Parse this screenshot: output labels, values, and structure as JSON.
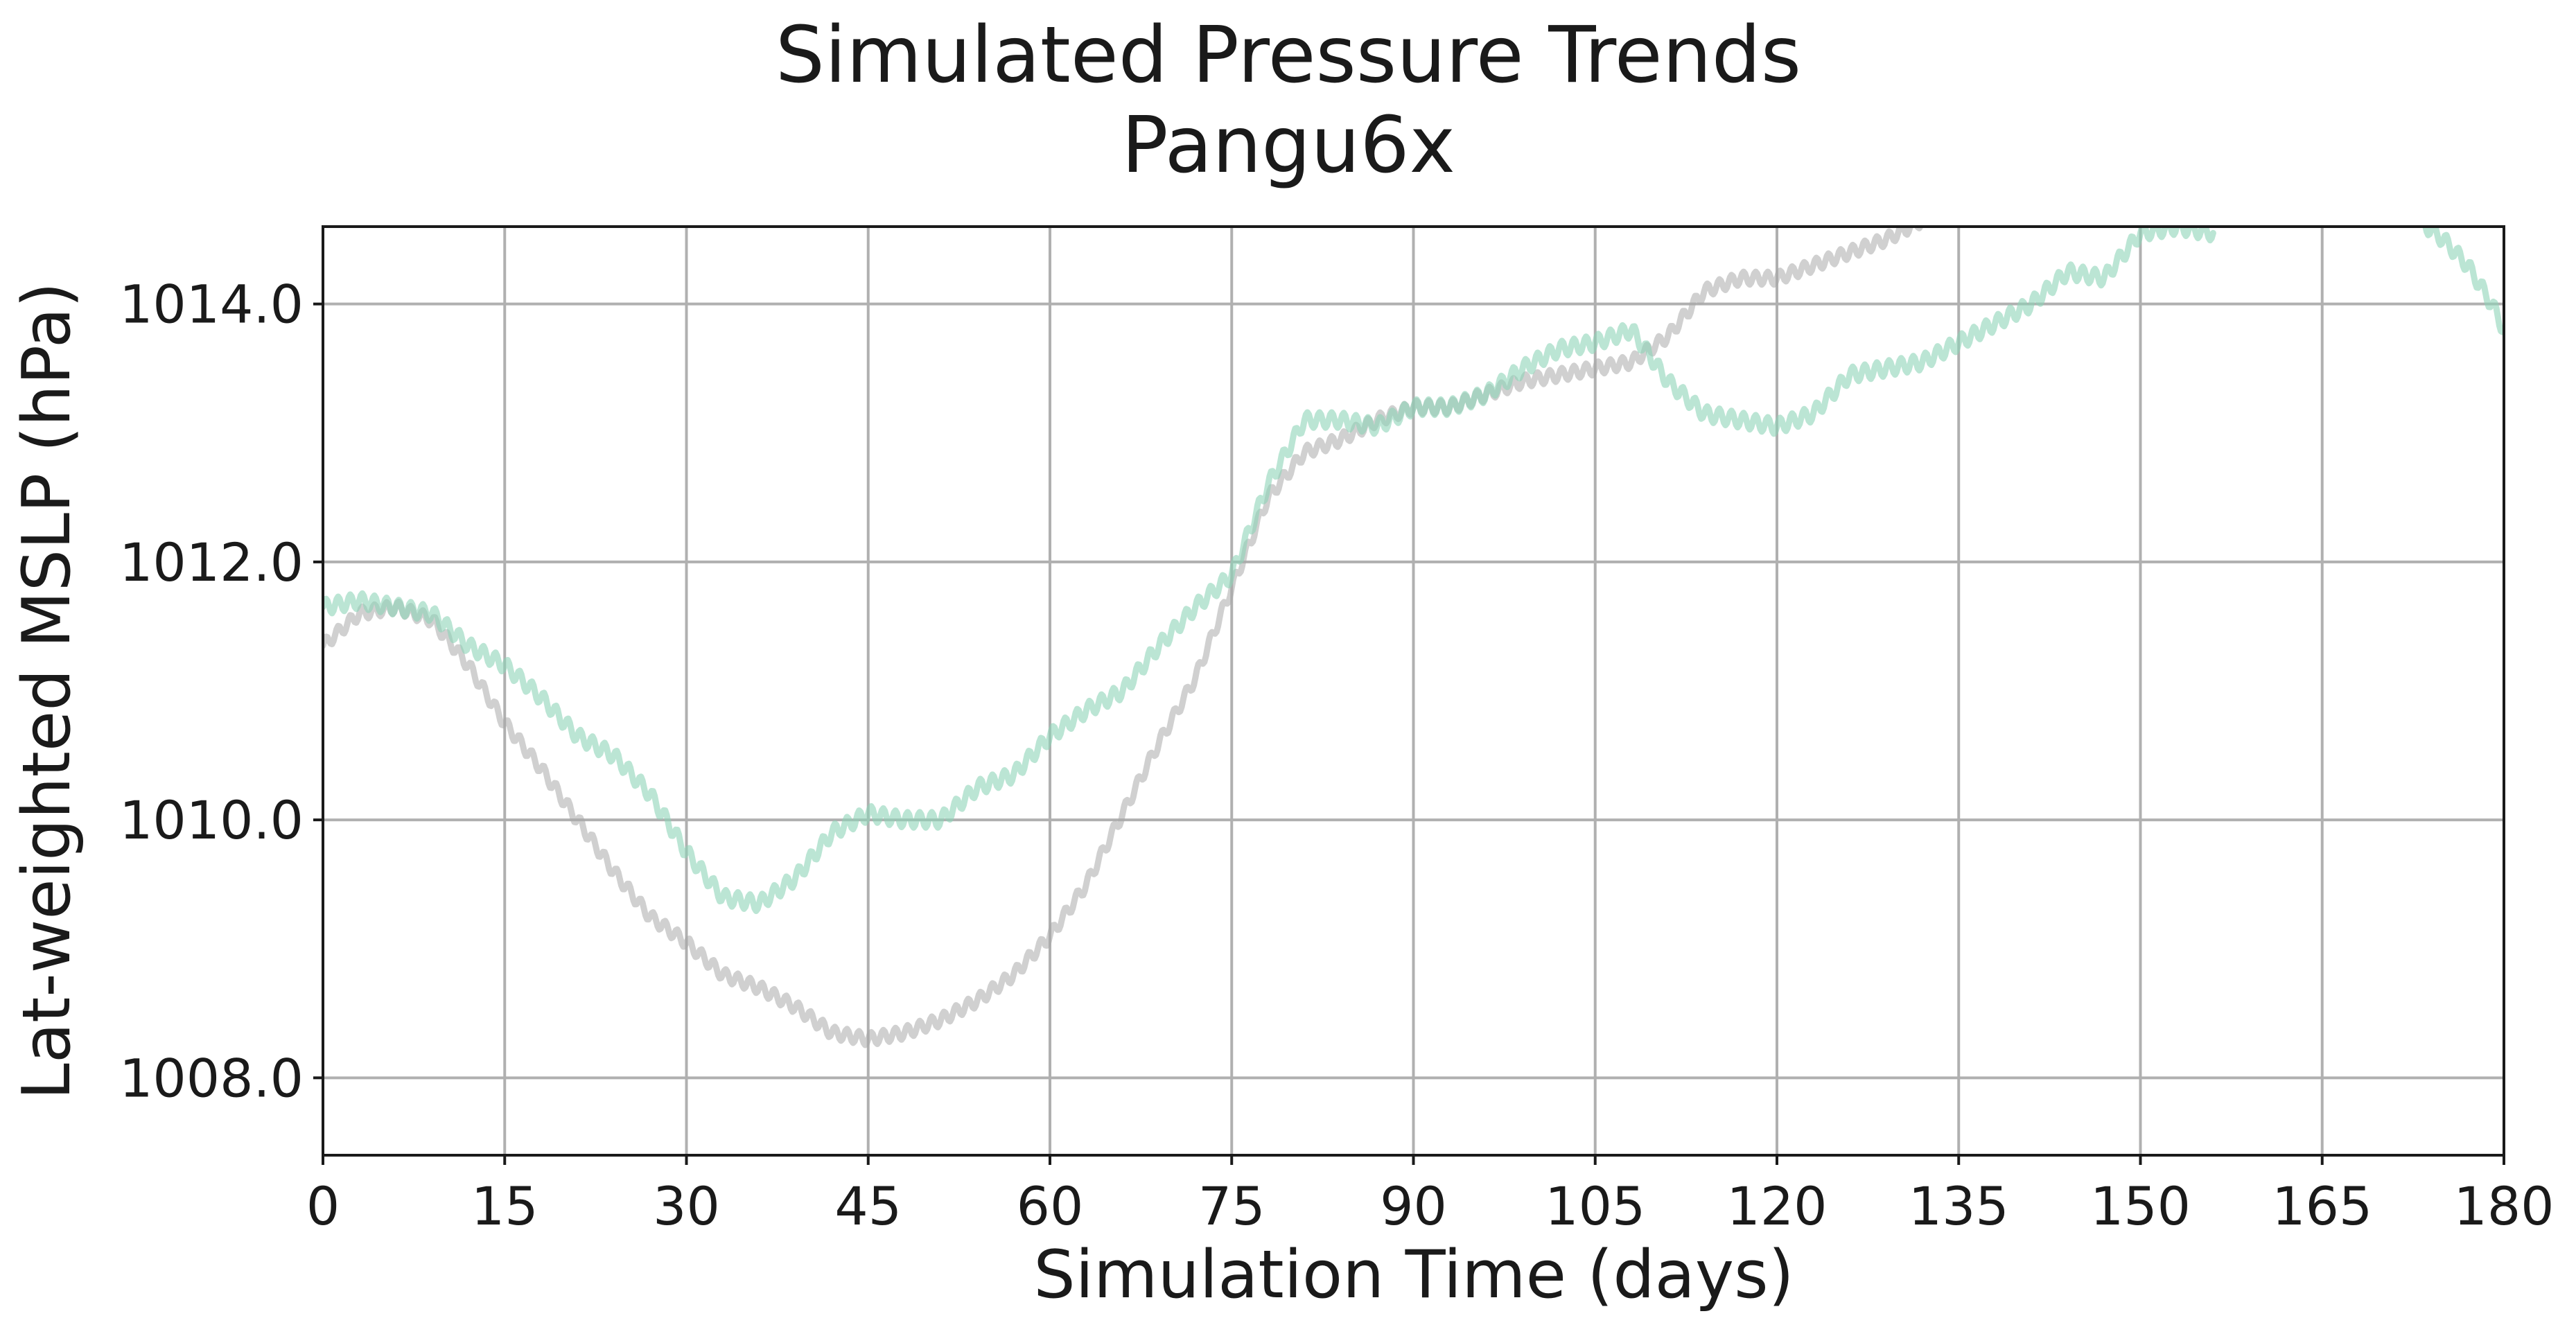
{
  "chart_data": {
    "type": "line",
    "title": "Simulated Pressure Trends",
    "subtitle": "Pangu6x",
    "xlabel": "Simulation Time (days)",
    "ylabel": "Lat-weighted MSLP (hPa)",
    "xlim": [
      0,
      180
    ],
    "ylim": [
      1007.4,
      1014.6
    ],
    "xticks": [
      0,
      15,
      30,
      45,
      60,
      75,
      90,
      105,
      120,
      135,
      150,
      165,
      180
    ],
    "xtick_labels": [
      "0",
      "15",
      "30",
      "45",
      "60",
      "75",
      "90",
      "105",
      "120",
      "135",
      "150",
      "165",
      "180"
    ],
    "yticks": [
      1008.0,
      1010.0,
      1012.0,
      1014.0
    ],
    "ytick_labels": [
      "1008.0",
      "1010.0",
      "1012.0",
      "1014.0"
    ],
    "grid": true,
    "legend": false,
    "series": [
      {
        "color": "#a9a9a9",
        "opacity": 0.55,
        "oscillation_amplitude": 0.05,
        "x": [
          0,
          3,
          6,
          9,
          12,
          15,
          18,
          21,
          24,
          27,
          30,
          33,
          36,
          39,
          42,
          45,
          48,
          51,
          54,
          57,
          60,
          63,
          66,
          69,
          72,
          75,
          78,
          81,
          84,
          87,
          90,
          93,
          96,
          99,
          102,
          105,
          108,
          111,
          114,
          117,
          120,
          123,
          126,
          129,
          132
        ],
        "y": [
          1011.35,
          1011.6,
          1011.65,
          1011.55,
          1011.2,
          1010.75,
          1010.4,
          1010.0,
          1009.6,
          1009.25,
          1009.05,
          1008.8,
          1008.7,
          1008.55,
          1008.35,
          1008.3,
          1008.35,
          1008.45,
          1008.6,
          1008.8,
          1009.1,
          1009.5,
          1010.05,
          1010.6,
          1011.1,
          1011.8,
          1012.5,
          1012.85,
          1012.95,
          1013.1,
          1013.2,
          1013.2,
          1013.3,
          1013.4,
          1013.45,
          1013.5,
          1013.55,
          1013.75,
          1014.1,
          1014.2,
          1014.2,
          1014.3,
          1014.4,
          1014.5,
          1014.65
        ]
      },
      {
        "color": "#8dd4b8",
        "opacity": 0.6,
        "oscillation_amplitude": 0.06,
        "x": [
          0,
          3,
          6,
          9,
          12,
          15,
          18,
          21,
          24,
          27,
          30,
          33,
          36,
          39,
          42,
          45,
          48,
          51,
          54,
          57,
          60,
          63,
          66,
          69,
          72,
          75,
          78,
          81,
          84,
          87,
          90,
          93,
          96,
          99,
          102,
          105,
          108,
          111,
          114,
          117,
          120,
          123,
          126,
          129,
          132,
          135,
          138,
          141,
          144,
          147,
          150,
          153,
          156
        ],
        "y": [
          1011.65,
          1011.7,
          1011.65,
          1011.6,
          1011.35,
          1011.2,
          1010.95,
          1010.65,
          1010.5,
          1010.2,
          1009.75,
          1009.4,
          1009.35,
          1009.55,
          1009.9,
          1010.05,
          1010.0,
          1010.0,
          1010.25,
          1010.35,
          1010.65,
          1010.85,
          1011.0,
          1011.35,
          1011.65,
          1011.9,
          1012.6,
          1013.1,
          1013.1,
          1013.05,
          1013.2,
          1013.2,
          1013.3,
          1013.5,
          1013.65,
          1013.7,
          1013.8,
          1013.4,
          1013.15,
          1013.1,
          1013.05,
          1013.15,
          1013.45,
          1013.5,
          1013.55,
          1013.7,
          1013.85,
          1014.0,
          1014.25,
          1014.2,
          1014.55,
          1014.6,
          1014.55
        ]
      },
      {
        "color": "#8dd4b8",
        "opacity": 0.6,
        "oscillation_amplitude": 0.06,
        "x": [
          173,
          175,
          177,
          179,
          180
        ],
        "y": [
          1014.65,
          1014.5,
          1014.3,
          1014.0,
          1013.8
        ]
      }
    ]
  }
}
